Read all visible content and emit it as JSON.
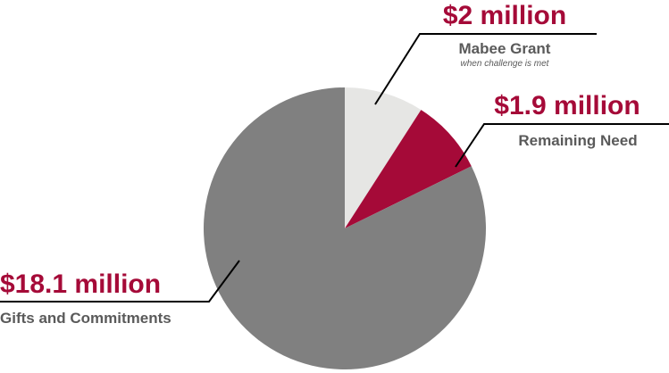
{
  "chart_data": {
    "type": "pie",
    "title": "",
    "unit": "million",
    "slices": [
      {
        "label": "Mabee Grant",
        "amount_label": "$2 million",
        "note": "when challenge is met",
        "value": 2,
        "color": "#e6e6e4"
      },
      {
        "label": "Remaining Need",
        "amount_label": "$1.9 million",
        "value": 1.9,
        "color": "#a50a38"
      },
      {
        "label": "Gifts and Commitments",
        "amount_label": "$18.1 million",
        "value": 18.1,
        "color": "#808080"
      }
    ]
  },
  "colors": {
    "amount_text": "#a50a38",
    "description_text": "#5a5a5a",
    "leader_line": "#000000"
  }
}
